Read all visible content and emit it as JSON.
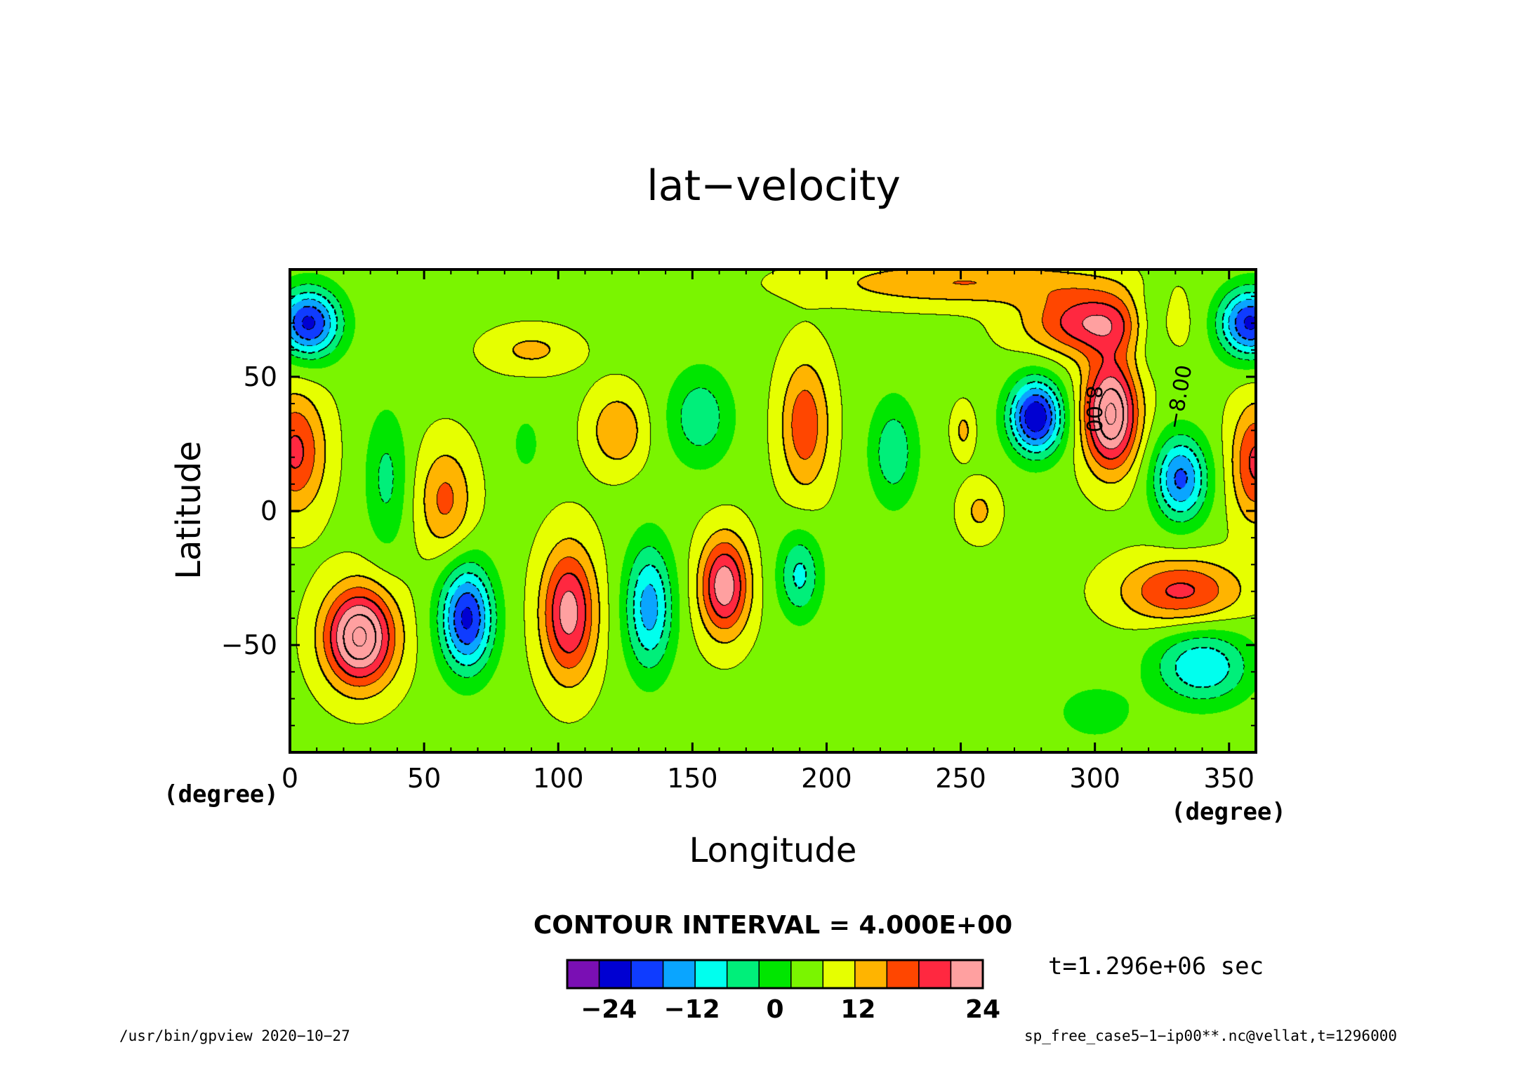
{
  "chart_data": {
    "type": "heatmap",
    "title": "lat−velocity",
    "xlabel": "Longitude",
    "ylabel": "Latitude",
    "x_unit": "(degree)",
    "y_unit": "(degree)",
    "xlim": [
      0,
      360
    ],
    "ylim": [
      -90,
      90
    ],
    "x_ticks": [
      "0",
      "50",
      "100",
      "150",
      "200",
      "250",
      "300",
      "350"
    ],
    "x_tick_values": [
      0,
      50,
      100,
      150,
      200,
      250,
      300,
      350
    ],
    "y_ticks": [
      "−50",
      "0",
      "50"
    ],
    "y_tick_values": [
      -50,
      0,
      50
    ],
    "contour_interval_label": "CONTOUR INTERVAL = 4.000E+00",
    "contour_labels": [
      "8.00",
      "−8.00"
    ],
    "colorbar": {
      "levels": [
        -28,
        -24,
        -20,
        -16,
        -12,
        -8,
        -4,
        0,
        4,
        8,
        12,
        16,
        20,
        24,
        28
      ],
      "tick_labels": [
        "−24",
        "−12",
        "0",
        "12",
        "24"
      ],
      "tick_values": [
        -24,
        -12,
        0,
        12,
        24
      ],
      "colors": [
        "#7a0fb4",
        "#0000d2",
        "#0f3cff",
        "#0aa5ff",
        "#00ffee",
        "#00ef7a",
        "#00e600",
        "#7af500",
        "#e6ff00",
        "#ffb400",
        "#ff4600",
        "#ff2840",
        "#ffa0a0"
      ]
    },
    "field": {
      "description_free": true,
      "features": [
        {
          "lon": 7,
          "lat": 70,
          "amp": -24,
          "slon": 12,
          "slat": 13
        },
        {
          "lon": 358,
          "lat": 70,
          "amp": -24,
          "slon": 12,
          "slat": 13
        },
        {
          "lon": 2,
          "lat": 22,
          "amp": 14,
          "slon": 11,
          "slat": 22
        },
        {
          "lon": 360,
          "lat": 18,
          "amp": 14,
          "slon": 9,
          "slat": 22
        },
        {
          "lon": 26,
          "lat": -47,
          "amp": 26,
          "slon": 13,
          "slat": 18
        },
        {
          "lon": 58,
          "lat": 4,
          "amp": 10,
          "slon": 10,
          "slat": 20
        },
        {
          "lon": 36,
          "lat": 12,
          "amp": -8,
          "slon": 8,
          "slat": 26
        },
        {
          "lon": 66,
          "lat": -40,
          "amp": -24,
          "slon": 10,
          "slat": 20
        },
        {
          "lon": 104,
          "lat": -38,
          "amp": 19,
          "slon": 10,
          "slat": 24
        },
        {
          "lon": 134,
          "lat": -36,
          "amp": -17,
          "slon": 9,
          "slat": 24
        },
        {
          "lon": 162,
          "lat": -28,
          "amp": 20,
          "slon": 9,
          "slat": 18
        },
        {
          "lon": 190,
          "lat": -24,
          "amp": -12,
          "slon": 8,
          "slat": 16
        },
        {
          "lon": 192,
          "lat": 32,
          "amp": 12,
          "slon": 9,
          "slat": 24
        },
        {
          "lon": 225,
          "lat": 22,
          "amp": -10,
          "slon": 9,
          "slat": 20
        },
        {
          "lon": 122,
          "lat": 30,
          "amp": 9,
          "slon": 10,
          "slat": 14
        },
        {
          "lon": 153,
          "lat": 35,
          "amp": -10,
          "slon": 12,
          "slat": 18
        },
        {
          "lon": 90,
          "lat": 60,
          "amp": 6,
          "slon": 16,
          "slat": 8
        },
        {
          "lon": 88,
          "lat": 25,
          "amp": -4,
          "slon": 7,
          "slat": 14
        },
        {
          "lon": 251,
          "lat": 30,
          "amp": 6,
          "slon": 4,
          "slat": 9
        },
        {
          "lon": 257,
          "lat": 0,
          "amp": 6,
          "slon": 7,
          "slat": 10
        },
        {
          "lon": 278,
          "lat": 35,
          "amp": -27,
          "slon": 10,
          "slat": 14
        },
        {
          "lon": 306,
          "lat": 36,
          "amp": 26,
          "slon": 10,
          "slat": 20
        },
        {
          "lon": 300,
          "lat": 70,
          "amp": 17,
          "slon": 24,
          "slat": 12
        },
        {
          "lon": 250,
          "lat": 85,
          "amp": 9,
          "slon": 50,
          "slat": 8
        },
        {
          "lon": 332,
          "lat": 12,
          "amp": -20,
          "slon": 10,
          "slat": 16
        },
        {
          "lon": 332,
          "lat": -30,
          "amp": 14,
          "slon": 22,
          "slat": 12
        },
        {
          "lon": 340,
          "lat": -58,
          "amp": -15,
          "slon": 18,
          "slat": 14
        },
        {
          "lon": 300,
          "lat": -75,
          "amp": -6,
          "slon": 14,
          "slat": 10
        },
        {
          "lon": 320,
          "lat": 70,
          "amp": -8,
          "slon": 8,
          "slat": 14
        }
      ],
      "background": 3
    }
  },
  "footer": {
    "time_label": "t=1.296e+06 sec",
    "program": "/usr/bin/gpview   2020−10−27",
    "source": "sp_free_case5−1−ip00**.nc@vellat,t=1296000"
  }
}
